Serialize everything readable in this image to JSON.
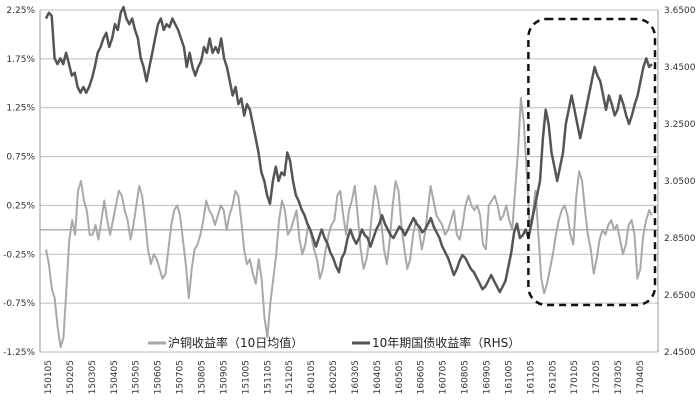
{
  "chart_data": {
    "type": "line",
    "title": "",
    "xlabel": "",
    "ylabel_left": "",
    "ylabel_right": "",
    "x_ticks": [
      "150105",
      "150205",
      "150305",
      "150405",
      "150505",
      "150605",
      "150705",
      "150805",
      "150905",
      "151005",
      "151105",
      "151205",
      "160105",
      "160205",
      "160305",
      "160405",
      "160505",
      "160605",
      "160705",
      "160805",
      "160905",
      "161005",
      "161105",
      "161205",
      "170105",
      "170205",
      "170305",
      "170405"
    ],
    "left_axis": {
      "ticks": [
        "-1.25%",
        "-0.75%",
        "-0.25%",
        "0.25%",
        "0.75%",
        "1.25%",
        "1.75%",
        "2.25%"
      ],
      "ylim": [
        -1.25,
        2.25
      ]
    },
    "right_axis": {
      "ticks": [
        "2.4500",
        "2.6500",
        "2.8500",
        "3.0500",
        "3.2500",
        "3.4500",
        "3.6500"
      ],
      "ylim": [
        2.45,
        3.65
      ]
    },
    "grid": "horizontal",
    "legend_position": "bottom-center",
    "series": [
      {
        "name": "沪铜收益率（10日均值）",
        "axis": "left",
        "color": "#a9a9a9",
        "values": [
          -0.2,
          -0.35,
          -0.6,
          -0.7,
          -1.0,
          -1.2,
          -1.1,
          -0.6,
          -0.1,
          0.1,
          -0.05,
          0.4,
          0.5,
          0.3,
          0.2,
          -0.05,
          -0.05,
          0.05,
          -0.1,
          0.1,
          0.3,
          0.1,
          -0.05,
          0.1,
          0.25,
          0.4,
          0.35,
          0.2,
          0.1,
          -0.1,
          0.05,
          0.25,
          0.45,
          0.35,
          0.1,
          -0.2,
          -0.35,
          -0.25,
          -0.3,
          -0.4,
          -0.5,
          -0.45,
          -0.2,
          0.05,
          0.2,
          0.25,
          0.15,
          -0.1,
          -0.35,
          -0.7,
          -0.4,
          -0.2,
          -0.15,
          -0.05,
          0.1,
          0.3,
          0.2,
          0.15,
          0.05,
          0.15,
          0.25,
          0.2,
          0.0,
          0.15,
          0.25,
          0.4,
          0.35,
          0.1,
          -0.2,
          -0.35,
          -0.3,
          -0.45,
          -0.55,
          -0.3,
          -0.5,
          -0.9,
          -1.1,
          -0.75,
          -0.5,
          -0.25,
          0.1,
          0.3,
          0.2,
          -0.05,
          0.0,
          0.1,
          0.2,
          -0.1,
          -0.25,
          -0.15,
          0.05,
          -0.05,
          -0.2,
          -0.3,
          -0.5,
          -0.4,
          -0.2,
          -0.05,
          0.05,
          0.1,
          0.35,
          0.4,
          0.15,
          -0.05,
          0.2,
          0.3,
          0.45,
          0.15,
          -0.2,
          -0.4,
          -0.3,
          -0.1,
          0.2,
          0.45,
          0.3,
          0.1,
          -0.2,
          -0.35,
          -0.1,
          0.25,
          0.5,
          0.4,
          0.05,
          -0.2,
          -0.4,
          -0.3,
          -0.05,
          0.1,
          0.0,
          -0.2,
          -0.05,
          0.2,
          0.45,
          0.3,
          0.15,
          0.1,
          0.05,
          -0.05,
          0.0,
          0.1,
          0.2,
          -0.05,
          -0.1,
          0.05,
          0.25,
          0.35,
          0.25,
          0.2,
          0.25,
          0.15,
          -0.15,
          -0.2,
          0.25,
          0.3,
          0.35,
          0.25,
          0.1,
          0.15,
          0.25,
          0.1,
          0.0,
          0.4,
          0.8,
          1.35,
          1.1,
          0.6,
          0.05,
          0.15,
          0.4,
          -0.05,
          -0.5,
          -0.65,
          -0.55,
          -0.4,
          -0.25,
          -0.05,
          0.1,
          0.2,
          0.25,
          0.15,
          -0.05,
          -0.15,
          0.35,
          0.6,
          0.5,
          0.2,
          -0.05,
          -0.2,
          -0.45,
          -0.3,
          -0.1,
          0.0,
          -0.05,
          0.05,
          0.1,
          0.0,
          0.05,
          -0.1,
          -0.25,
          -0.15,
          0.05,
          0.1,
          -0.05,
          -0.5,
          -0.4,
          -0.05,
          0.1,
          0.2,
          0.15
        ]
      },
      {
        "name": "10年期国债收益率（RHS）",
        "axis": "right",
        "color": "#555555",
        "values": [
          3.62,
          3.64,
          3.63,
          3.48,
          3.46,
          3.48,
          3.46,
          3.5,
          3.46,
          3.42,
          3.43,
          3.38,
          3.36,
          3.38,
          3.36,
          3.38,
          3.41,
          3.45,
          3.5,
          3.52,
          3.55,
          3.57,
          3.52,
          3.55,
          3.6,
          3.58,
          3.64,
          3.66,
          3.62,
          3.6,
          3.62,
          3.58,
          3.55,
          3.48,
          3.45,
          3.4,
          3.45,
          3.5,
          3.55,
          3.6,
          3.62,
          3.58,
          3.6,
          3.59,
          3.62,
          3.6,
          3.58,
          3.55,
          3.52,
          3.45,
          3.5,
          3.45,
          3.42,
          3.45,
          3.47,
          3.52,
          3.5,
          3.55,
          3.5,
          3.52,
          3.5,
          3.55,
          3.48,
          3.45,
          3.4,
          3.35,
          3.38,
          3.32,
          3.34,
          3.28,
          3.32,
          3.3,
          3.25,
          3.2,
          3.15,
          3.08,
          3.05,
          3.0,
          2.97,
          3.05,
          3.1,
          3.05,
          3.08,
          3.07,
          3.15,
          3.12,
          3.05,
          3.0,
          2.98,
          2.95,
          2.93,
          2.9,
          2.88,
          2.85,
          2.82,
          2.85,
          2.88,
          2.85,
          2.83,
          2.8,
          2.78,
          2.75,
          2.73,
          2.78,
          2.8,
          2.85,
          2.88,
          2.85,
          2.83,
          2.85,
          2.88,
          2.86,
          2.85,
          2.82,
          2.85,
          2.88,
          2.9,
          2.93,
          2.9,
          2.88,
          2.86,
          2.85,
          2.87,
          2.89,
          2.88,
          2.86,
          2.88,
          2.9,
          2.92,
          2.9,
          2.89,
          2.87,
          2.88,
          2.9,
          2.92,
          2.89,
          2.87,
          2.85,
          2.82,
          2.8,
          2.78,
          2.75,
          2.72,
          2.74,
          2.77,
          2.79,
          2.78,
          2.76,
          2.74,
          2.73,
          2.71,
          2.69,
          2.67,
          2.68,
          2.7,
          2.72,
          2.7,
          2.68,
          2.66,
          2.68,
          2.7,
          2.75,
          2.8,
          2.87,
          2.9,
          2.85,
          2.86,
          2.88,
          2.85,
          2.9,
          2.95,
          3.0,
          3.05,
          3.2,
          3.3,
          3.25,
          3.15,
          3.1,
          3.05,
          3.1,
          3.15,
          3.25,
          3.3,
          3.35,
          3.3,
          3.25,
          3.2,
          3.25,
          3.3,
          3.35,
          3.4,
          3.45,
          3.42,
          3.4,
          3.35,
          3.3,
          3.35,
          3.32,
          3.28,
          3.3,
          3.35,
          3.32,
          3.28,
          3.25,
          3.28,
          3.32,
          3.35,
          3.4,
          3.45,
          3.48,
          3.45,
          3.46
        ]
      }
    ],
    "annotations": [
      {
        "type": "dashed-rounded-box",
        "description": "highlight of recent period",
        "x_from": "161105",
        "x_to": "170405"
      }
    ]
  }
}
